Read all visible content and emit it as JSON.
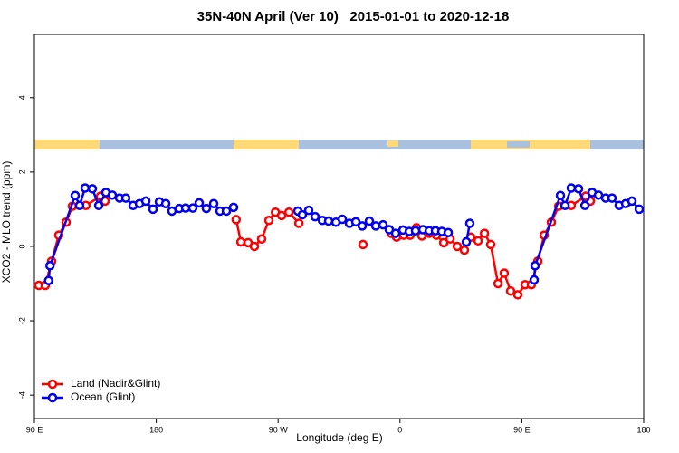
{
  "chart_data": {
    "type": "line",
    "title": "35N-40N April (Ver 10)   2015-01-01 to 2020-12-18",
    "x_label": "Longitude (deg E)",
    "y_label": "XCO2 - MLO trend (ppm)",
    "xlim": [
      90,
      540
    ],
    "ylim": [
      -4.63,
      5.7
    ],
    "xticks": [
      {
        "value": 90,
        "label": "90 E"
      },
      180,
      {
        "value": 270,
        "label": "90 W"
      },
      {
        "value": 360,
        "label": "0"
      },
      {
        "value": 450,
        "label": "90 E"
      },
      {
        "value": 540,
        "label": "180"
      }
    ],
    "yticks": [
      -4,
      -2,
      0,
      2,
      4
    ],
    "legend": "bottomleft",
    "series": [
      {
        "name": "Land (Nadir&Glint)",
        "color": "#ff0000",
        "x": [
          93.3,
          98,
          102.7,
          108,
          113.4,
          118,
          128,
          138.8,
          142.2,
          null,
          239,
          242.5,
          247.8,
          252.5,
          257.8,
          263.2,
          268,
          272.6,
          278,
          285.3,
          null,
          332.7,
          null,
          353.5,
          357.5,
          362.8,
          367.5,
          372.2,
          376.2,
          381.6,
          386.9,
          392.3,
          397,
          402.3,
          407.6,
          412.3,
          417.7,
          422.4,
          427,
          432.4,
          437,
          441.7,
          447,
          452.4,
          457,
          461.8,
          466.5,
          471.8,
          477.2,
          486.5,
          497.2,
          500.6
        ],
        "values": [
          -1.05,
          -1.05,
          -0.4,
          0.3,
          0.65,
          1.08,
          1.1,
          1.35,
          1.22,
          null,
          0.72,
          0.12,
          0.1,
          0.0,
          0.2,
          0.7,
          0.92,
          0.83,
          0.92,
          0.62,
          null,
          0.05,
          null,
          0.35,
          0.25,
          0.3,
          0.3,
          0.5,
          0.28,
          0.35,
          0.3,
          0.1,
          0.2,
          0.0,
          -0.1,
          0.25,
          0.15,
          0.35,
          0.05,
          -1.0,
          -0.72,
          -1.2,
          -1.3,
          -1.03,
          -1.03,
          -0.4,
          0.3,
          0.65,
          1.08,
          1.1,
          1.35,
          1.22
        ]
      },
      {
        "name": "Ocean (Glint)",
        "color": "#0000ee",
        "x": [
          100.5,
          101.5,
          120.1,
          123.4,
          127.4,
          132.8,
          137.5,
          142.8,
          147.5,
          152.9,
          157.5,
          162.9,
          167.6,
          172.3,
          177.6,
          182.3,
          187,
          191.6,
          197,
          201.7,
          207,
          211.7,
          217,
          222.4,
          227.1,
          231.8,
          237.1,
          null,
          284.6,
          287.9,
          292.6,
          297.3,
          302.7,
          307.3,
          312.7,
          317.4,
          322.7,
          327.4,
          332.1,
          337.4,
          342.1,
          347.5,
          352.1,
          356.8,
          362.2,
          366.9,
          371.5,
          376.9,
          381.6,
          386.2,
          390.9,
          395.6,
          null,
          409,
          411.6,
          null,
          459.1,
          459.8,
          478.5,
          481.9,
          486.5,
          491.9,
          496.6,
          501.9,
          506.6,
          511.9,
          516.6,
          521.9,
          526.7,
          531.3,
          536.7
        ],
        "values": [
          -0.92,
          -0.52,
          1.37,
          1.1,
          1.57,
          1.55,
          1.1,
          1.45,
          1.38,
          1.3,
          1.3,
          1.1,
          1.15,
          1.22,
          1.0,
          1.2,
          1.15,
          0.95,
          1.02,
          1.03,
          1.03,
          1.17,
          1.02,
          1.15,
          0.95,
          0.95,
          1.05,
          null,
          0.95,
          0.85,
          0.97,
          0.8,
          0.7,
          0.68,
          0.65,
          0.73,
          0.62,
          0.66,
          0.55,
          0.68,
          0.55,
          0.58,
          0.45,
          0.35,
          0.44,
          0.4,
          0.42,
          0.45,
          0.42,
          0.42,
          0.4,
          0.37,
          null,
          0.12,
          0.62,
          null,
          -0.9,
          -0.52,
          1.37,
          1.1,
          1.57,
          1.55,
          1.1,
          1.45,
          1.38,
          1.3,
          1.3,
          1.1,
          1.15,
          1.22,
          1.0
        ]
      }
    ]
  }
}
